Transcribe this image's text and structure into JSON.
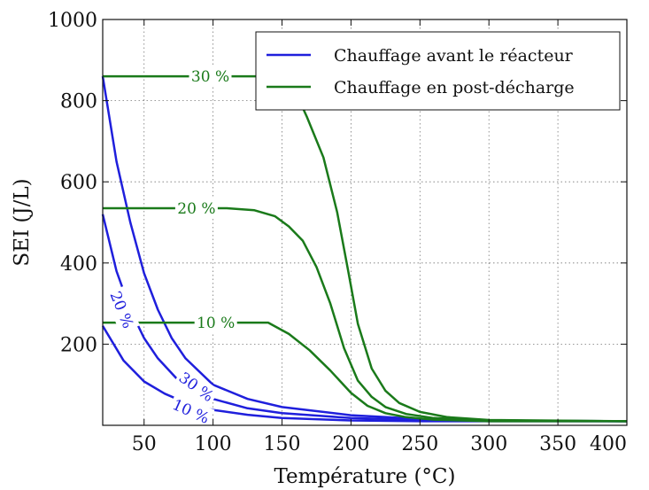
{
  "chart_data": {
    "type": "line",
    "xlabel": "Température (°C)",
    "ylabel": "SEI (J/L)",
    "xlim": [
      20,
      400
    ],
    "ylim": [
      0,
      1000
    ],
    "xticks": [
      50,
      100,
      150,
      200,
      250,
      300,
      350,
      400
    ],
    "yticks": [
      200,
      400,
      600,
      800,
      1000
    ],
    "grid": true,
    "legend": {
      "placement": "top-right",
      "entries": [
        {
          "label": "Chauffage avant le réacteur",
          "color": "#1f1fdc"
        },
        {
          "label": "Chauffage en post-décharge",
          "color": "#1a7a1a"
        }
      ]
    },
    "series": [
      {
        "group": "avant",
        "label": "10 %",
        "color": "#1f1fdc",
        "x": [
          20,
          35,
          50,
          65,
          80,
          100,
          125,
          150,
          200,
          250,
          300,
          400
        ],
        "y": [
          245,
          160,
          108,
          78,
          56,
          38,
          26,
          18,
          12,
          10,
          10,
          10
        ]
      },
      {
        "group": "avant",
        "label": "20 %",
        "color": "#1f1fdc",
        "x": [
          20,
          30,
          40,
          50,
          60,
          75,
          100,
          125,
          150,
          200,
          250,
          300,
          400
        ],
        "y": [
          520,
          380,
          285,
          215,
          165,
          110,
          65,
          42,
          30,
          18,
          13,
          11,
          10
        ]
      },
      {
        "group": "avant",
        "label": "30 %",
        "color": "#1f1fdc",
        "x": [
          20,
          30,
          40,
          50,
          60,
          70,
          80,
          100,
          125,
          150,
          200,
          250,
          300,
          400
        ],
        "y": [
          860,
          650,
          500,
          375,
          285,
          215,
          165,
          100,
          65,
          45,
          25,
          16,
          12,
          10
        ]
      },
      {
        "group": "post",
        "label": "10 %",
        "color": "#1a7a1a",
        "x": [
          20,
          140,
          155,
          170,
          185,
          200,
          212,
          225,
          240,
          260,
          300,
          400
        ],
        "y": [
          253,
          253,
          225,
          185,
          135,
          80,
          48,
          30,
          20,
          14,
          10,
          10
        ]
      },
      {
        "group": "post",
        "label": "20 %",
        "color": "#1a7a1a",
        "x": [
          20,
          110,
          130,
          145,
          155,
          165,
          175,
          185,
          195,
          205,
          215,
          225,
          240,
          260,
          300,
          400
        ],
        "y": [
          535,
          535,
          530,
          515,
          490,
          455,
          390,
          300,
          190,
          110,
          70,
          45,
          28,
          18,
          12,
          10
        ]
      },
      {
        "group": "post",
        "label": "30 %",
        "color": "#1a7a1a",
        "x": [
          20,
          150,
          160,
          168,
          180,
          190,
          198,
          205,
          215,
          225,
          235,
          250,
          270,
          300,
          400
        ],
        "y": [
          860,
          860,
          820,
          760,
          660,
          525,
          380,
          250,
          140,
          85,
          55,
          33,
          20,
          13,
          10
        ]
      }
    ]
  }
}
